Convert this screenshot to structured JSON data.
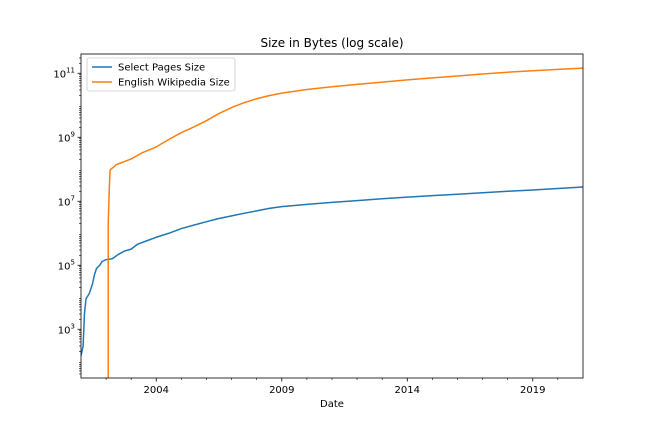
{
  "colors": {
    "series_blue": "#1f77b4",
    "series_orange": "#ff7f0e",
    "axis": "#000000",
    "background": "#ffffff"
  },
  "chart_data": {
    "type": "line",
    "title": "Size in Bytes (log scale)",
    "xlabel": "Date",
    "ylabel": "",
    "yscale": "log",
    "grid": false,
    "legend_position": "upper-left",
    "xlim": [
      "2001-01-01",
      "2021-01-01"
    ],
    "ylim": [
      30,
      400000000000
    ],
    "x_ticks": [
      {
        "value": "2004-01-01",
        "label": "2004"
      },
      {
        "value": "2009-01-01",
        "label": "2009"
      },
      {
        "value": "2014-01-01",
        "label": "2014"
      },
      {
        "value": "2019-01-01",
        "label": "2019"
      }
    ],
    "x_minor_ticks": [
      "2002-01-01",
      "2003-01-01",
      "2005-01-01",
      "2006-01-01",
      "2007-01-01",
      "2008-01-01",
      "2010-01-01",
      "2011-01-01",
      "2012-01-01",
      "2013-01-01",
      "2015-01-01",
      "2016-01-01",
      "2017-01-01",
      "2018-01-01",
      "2020-01-01"
    ],
    "y_ticks": [
      {
        "value": 1000,
        "base": "10",
        "exp": "3"
      },
      {
        "value": 100000,
        "base": "10",
        "exp": "5"
      },
      {
        "value": 10000000,
        "base": "10",
        "exp": "7"
      },
      {
        "value": 1000000000,
        "base": "10",
        "exp": "9"
      },
      {
        "value": 100000000000,
        "base": "10",
        "exp": "11"
      }
    ],
    "series": [
      {
        "name": "Select Pages Size",
        "color": "#1f77b4",
        "points": [
          [
            "2001-01-01",
            150
          ],
          [
            "2001-02-01",
            300
          ],
          [
            "2001-02-20",
            3000
          ],
          [
            "2001-03-15",
            9000
          ],
          [
            "2001-05-01",
            13000
          ],
          [
            "2001-06-15",
            25000
          ],
          [
            "2001-07-15",
            50000
          ],
          [
            "2001-08-15",
            80000
          ],
          [
            "2001-10-01",
            100000
          ],
          [
            "2001-11-01",
            130000
          ],
          [
            "2002-01-01",
            150000
          ],
          [
            "2002-04-01",
            160000
          ],
          [
            "2002-07-01",
            220000
          ],
          [
            "2002-10-01",
            280000
          ],
          [
            "2003-01-01",
            320000
          ],
          [
            "2003-04-01",
            450000
          ],
          [
            "2003-09-01",
            600000
          ],
          [
            "2004-01-01",
            750000
          ],
          [
            "2004-07-01",
            1000000
          ],
          [
            "2005-01-01",
            1400000
          ],
          [
            "2005-07-01",
            1800000
          ],
          [
            "2006-01-01",
            2300000
          ],
          [
            "2006-07-01",
            2900000
          ],
          [
            "2007-01-01",
            3500000
          ],
          [
            "2007-07-01",
            4200000
          ],
          [
            "2008-01-01",
            5000000
          ],
          [
            "2008-07-01",
            6000000
          ],
          [
            "2009-01-01",
            6800000
          ],
          [
            "2010-01-01",
            8000000
          ],
          [
            "2011-01-01",
            9200000
          ],
          [
            "2012-01-01",
            10500000
          ],
          [
            "2013-01-01",
            12000000
          ],
          [
            "2014-01-01",
            13500000
          ],
          [
            "2015-01-01",
            15000000
          ],
          [
            "2016-01-01",
            16500000
          ],
          [
            "2017-01-01",
            18500000
          ],
          [
            "2018-01-01",
            20500000
          ],
          [
            "2019-01-01",
            22500000
          ],
          [
            "2020-01-01",
            25000000
          ],
          [
            "2021-01-01",
            28000000
          ]
        ]
      },
      {
        "name": "English Wikipedia Size",
        "color": "#ff7f0e",
        "points": [
          [
            "2002-02-01",
            30
          ],
          [
            "2002-02-01",
            2000000
          ],
          [
            "2002-02-20",
            40000000
          ],
          [
            "2002-03-01",
            95000000
          ],
          [
            "2002-06-01",
            140000000
          ],
          [
            "2003-01-01",
            210000000
          ],
          [
            "2003-06-01",
            320000000
          ],
          [
            "2004-01-01",
            500000000
          ],
          [
            "2004-07-01",
            850000000
          ],
          [
            "2005-01-01",
            1400000000
          ],
          [
            "2005-07-01",
            2100000000
          ],
          [
            "2006-01-01",
            3300000000
          ],
          [
            "2006-07-01",
            5500000000
          ],
          [
            "2007-01-01",
            8500000000
          ],
          [
            "2007-07-01",
            12000000000
          ],
          [
            "2008-01-01",
            16000000000
          ],
          [
            "2008-07-01",
            20000000000
          ],
          [
            "2009-01-01",
            24000000000
          ],
          [
            "2010-01-01",
            31000000000
          ],
          [
            "2011-01-01",
            38000000000
          ],
          [
            "2012-01-01",
            45000000000
          ],
          [
            "2013-01-01",
            53000000000
          ],
          [
            "2014-01-01",
            62000000000
          ],
          [
            "2015-01-01",
            72000000000
          ],
          [
            "2016-01-01",
            82000000000
          ],
          [
            "2017-01-01",
            95000000000
          ],
          [
            "2018-01-01",
            108000000000
          ],
          [
            "2019-01-01",
            120000000000
          ],
          [
            "2020-01-01",
            132000000000
          ],
          [
            "2021-01-01",
            145000000000
          ]
        ]
      }
    ]
  }
}
